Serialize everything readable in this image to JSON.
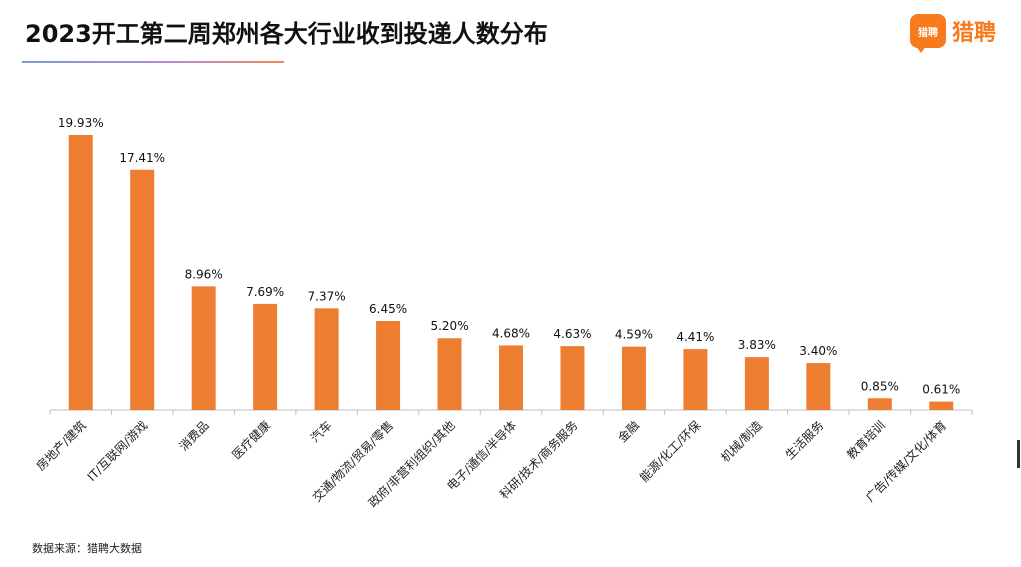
{
  "title": "2023开工第二周郑州各大行业收到投递人数分布",
  "logo": {
    "badge_text": "猎聘",
    "text": "猎聘",
    "color": "#f77a1c"
  },
  "source": "数据来源：猎聘大数据",
  "chart_data": {
    "type": "bar",
    "title": "2023开工第二周郑州各大行业收到投递人数分布",
    "categories": [
      "房地产/建筑",
      "IT/互联网/游戏",
      "消费品",
      "医疗健康",
      "汽车",
      "交通/物流/贸易/零售",
      "政府/非营利组织/其他",
      "电子/通信/半导体",
      "科研/技术/商务服务",
      "金融",
      "能源/化工/环保",
      "机械/制造",
      "生活服务",
      "教育培训",
      "广告/传媒/文化/体育"
    ],
    "values": [
      19.93,
      17.41,
      8.96,
      7.69,
      7.37,
      6.45,
      5.2,
      4.68,
      4.63,
      4.59,
      4.41,
      3.83,
      3.4,
      0.85,
      0.61
    ],
    "value_labels": [
      "19.93%",
      "17.41%",
      "8.96%",
      "7.69%",
      "7.37%",
      "6.45%",
      "5.20%",
      "4.68%",
      "4.63%",
      "4.59%",
      "4.41%",
      "3.83%",
      "3.40%",
      "0.85%",
      "0.61%"
    ],
    "unit": "%",
    "bar_color": "#ed7d31",
    "axis_color": "#bfbfbf",
    "ylim": [
      0,
      20
    ],
    "grid": false,
    "legend": "none"
  }
}
